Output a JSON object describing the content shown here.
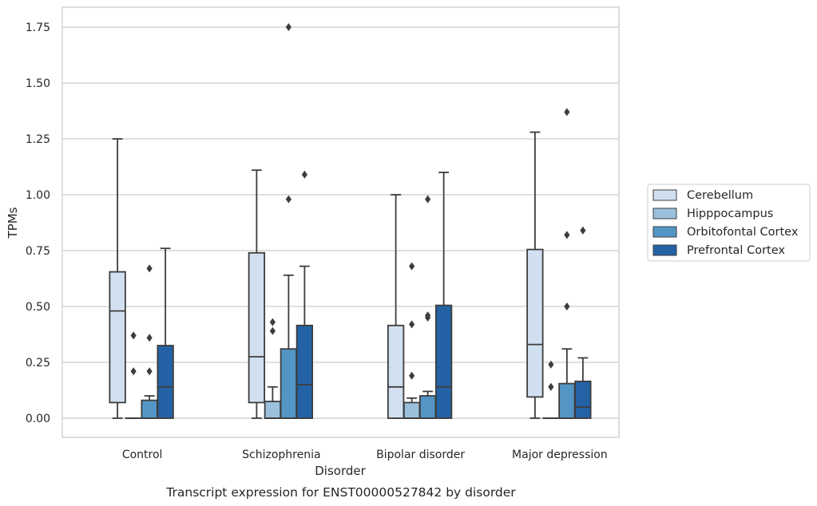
{
  "caption": "Transcript expression for ENST00000527842 by disorder",
  "chart_data": {
    "type": "box",
    "xlabel": "Disorder",
    "ylabel": "TPMs",
    "ylim": [
      -0.085,
      1.84
    ],
    "yticks": [
      "0.00",
      "0.25",
      "0.50",
      "0.75",
      "1.00",
      "1.25",
      "1.50",
      "1.75"
    ],
    "grid": "horizontal",
    "legend_position": "right",
    "categories": [
      "Control",
      "Schizophrenia",
      "Bipolar disorder",
      "Major depression"
    ],
    "series": [
      {
        "name": "Cerebellum",
        "color": "#d1e0f0",
        "boxes": [
          {
            "whislo": 0.0,
            "q1": 0.07,
            "med": 0.48,
            "q3": 0.655,
            "whishi": 1.25,
            "fliers": []
          },
          {
            "whislo": 0.0,
            "q1": 0.07,
            "med": 0.275,
            "q3": 0.74,
            "whishi": 1.11,
            "fliers": []
          },
          {
            "whislo": 0.0,
            "q1": 0.0,
            "med": 0.14,
            "q3": 0.415,
            "whishi": 1.0,
            "fliers": []
          },
          {
            "whislo": 0.0,
            "q1": 0.095,
            "med": 0.33,
            "q3": 0.755,
            "whishi": 1.28,
            "fliers": []
          }
        ]
      },
      {
        "name": "Hipppocampus",
        "color": "#9ac0dc",
        "boxes": [
          {
            "whislo": 0.0,
            "q1": 0.0,
            "med": 0.0,
            "q3": 0.0,
            "whishi": 0.0,
            "fliers": [
              0.21,
              0.37
            ]
          },
          {
            "whislo": 0.0,
            "q1": 0.0,
            "med": 0.0,
            "q3": 0.075,
            "whishi": 0.14,
            "fliers": [
              0.39,
              0.43
            ]
          },
          {
            "whislo": 0.0,
            "q1": 0.0,
            "med": 0.0,
            "q3": 0.07,
            "whishi": 0.09,
            "fliers": [
              0.19,
              0.42,
              0.68
            ]
          },
          {
            "whislo": 0.0,
            "q1": 0.0,
            "med": 0.0,
            "q3": 0.0,
            "whishi": 0.0,
            "fliers": [
              0.14,
              0.24
            ]
          }
        ]
      },
      {
        "name": "Orbitofontal Cortex",
        "color": "#5396c6",
        "boxes": [
          {
            "whislo": 0.0,
            "q1": 0.0,
            "med": 0.0,
            "q3": 0.08,
            "whishi": 0.1,
            "fliers": [
              0.21,
              0.36,
              0.67
            ]
          },
          {
            "whislo": 0.0,
            "q1": 0.0,
            "med": 0.0,
            "q3": 0.31,
            "whishi": 0.64,
            "fliers": [
              0.98,
              1.75
            ]
          },
          {
            "whislo": 0.0,
            "q1": 0.0,
            "med": 0.0,
            "q3": 0.1,
            "whishi": 0.12,
            "fliers": [
              0.45,
              0.46,
              0.98
            ]
          },
          {
            "whislo": 0.0,
            "q1": 0.0,
            "med": 0.0,
            "q3": 0.155,
            "whishi": 0.31,
            "fliers": [
              0.5,
              0.82,
              1.37
            ]
          }
        ]
      },
      {
        "name": "Prefrontal Cortex",
        "color": "#2462a6",
        "boxes": [
          {
            "whislo": 0.0,
            "q1": 0.0,
            "med": 0.14,
            "q3": 0.325,
            "whishi": 0.76,
            "fliers": []
          },
          {
            "whislo": 0.0,
            "q1": 0.0,
            "med": 0.15,
            "q3": 0.415,
            "whishi": 0.68,
            "fliers": [
              1.09
            ]
          },
          {
            "whislo": 0.0,
            "q1": 0.0,
            "med": 0.14,
            "q3": 0.505,
            "whishi": 1.1,
            "fliers": []
          },
          {
            "whislo": 0.0,
            "q1": 0.0,
            "med": 0.05,
            "q3": 0.165,
            "whishi": 0.27,
            "fliers": [
              0.84
            ]
          }
        ]
      }
    ]
  }
}
